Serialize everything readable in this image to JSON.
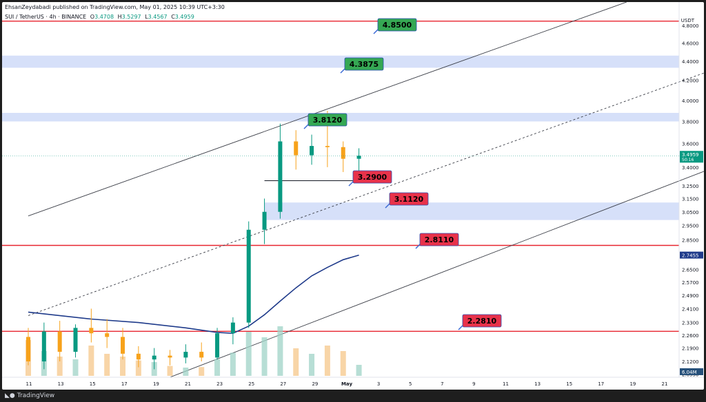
{
  "header": {
    "caption": "EhsanZeydabadi published on TradingView.com, May 01, 2025 10:39 UTC+3:30",
    "symbol": "SUI / TetherUS · 4h · BINANCE",
    "ohlc": [
      {
        "key": "O",
        "value": "3.4708"
      },
      {
        "key": "H",
        "value": "3.5297"
      },
      {
        "key": "L",
        "value": "3.4567"
      },
      {
        "key": "C",
        "value": "3.4959"
      }
    ],
    "currency": "USDT"
  },
  "footer": {
    "brand": "TradingView",
    "logo_icon": "tradingview-logo-icon"
  },
  "colors": {
    "bull": "#089981",
    "bear": "#f7a21b",
    "level": "#e8252f",
    "zone": "#d6e0f9",
    "channel": "#3a3d46",
    "ma": "#1e3a8a",
    "green_tag": "#35a853",
    "red_tag": "#e8324a"
  },
  "chart_data": {
    "type": "candlestick",
    "symbol": "SUI/USDT",
    "timeframe": "4h",
    "y_axis": {
      "ticks": [
        "4.8000",
        "4.6000",
        "4.4000",
        "4.2000",
        "4.0000",
        "3.8000",
        "3.6000",
        "3.4000",
        "3.2500",
        "3.1500",
        "3.0500",
        "2.9500",
        "2.8500",
        "2.7500",
        "2.6500",
        "2.5700",
        "2.4900",
        "2.4100",
        "2.3300",
        "2.2600",
        "2.1900",
        "2.1200",
        "2.0550"
      ],
      "scale": "log",
      "range": [
        2.04,
        5.08
      ],
      "current_price": "3.4959",
      "countdown": "50:16",
      "ma_value": "2.7455",
      "volume_value": "6.04M"
    },
    "x_axis": {
      "ticks": [
        "11",
        "13",
        "15",
        "17",
        "19",
        "21",
        "23",
        "25",
        "27",
        "29",
        "May",
        "3",
        "5",
        "7",
        "9",
        "11",
        "13",
        "15",
        "17",
        "19",
        "21"
      ],
      "range": [
        "2025-04-09",
        "2025-05-22"
      ]
    },
    "levels": [
      {
        "value": 4.85,
        "label": "4.8500",
        "kind": "resistance-line",
        "tag": "green",
        "tag_date": "2025-04-28"
      },
      {
        "value": 4.3875,
        "label": "4.3875",
        "kind": "zone",
        "zone": [
          4.33,
          4.46
        ],
        "tag": "green",
        "tag_date": "2025-04-28"
      },
      {
        "value": 3.812,
        "label": "3.8120",
        "kind": "zone",
        "zone": [
          3.8,
          3.88
        ],
        "tag": "green",
        "tag_date": "2025-04-27"
      },
      {
        "value": 3.29,
        "label": "3.2900",
        "kind": "support-segment",
        "from": "2025-04-24",
        "to": "2025-04-30",
        "tag": "red",
        "tag_date": "2025-04-30"
      },
      {
        "value": 3.112,
        "label": "3.1120",
        "kind": "zone",
        "zone": [
          2.99,
          3.12
        ],
        "zone_from": "2025-04-24",
        "tag": "red",
        "tag_date": "2025-05-03"
      },
      {
        "value": 2.811,
        "label": "2.8110",
        "kind": "support-line",
        "tag": "red",
        "tag_date": "2025-05-05"
      },
      {
        "value": 2.281,
        "label": "2.2810",
        "kind": "support-line",
        "tag": "red",
        "tag_date": "2025-05-09"
      }
    ],
    "channel": [
      {
        "name": "upper",
        "style": "solid",
        "points": [
          [
            "2025-04-09",
            3.02
          ],
          [
            "2025-05-17",
            5.08
          ]
        ]
      },
      {
        "name": "middle",
        "style": "dashed",
        "points": [
          [
            "2025-04-09",
            2.37
          ],
          [
            "2025-05-22",
            4.28
          ]
        ]
      },
      {
        "name": "lower",
        "style": "solid",
        "points": [
          [
            "2025-04-18",
            2.04
          ],
          [
            "2025-05-22",
            3.37
          ]
        ]
      }
    ],
    "moving_average": [
      [
        "2025-04-09",
        2.39
      ],
      [
        "2025-04-13",
        2.35
      ],
      [
        "2025-04-16",
        2.33
      ],
      [
        "2025-04-19",
        2.3
      ],
      [
        "2025-04-21",
        2.275
      ],
      [
        "2025-04-22",
        2.27
      ],
      [
        "2025-04-23",
        2.31
      ],
      [
        "2025-04-24",
        2.375
      ],
      [
        "2025-04-25",
        2.455
      ],
      [
        "2025-04-26",
        2.535
      ],
      [
        "2025-04-27",
        2.61
      ],
      [
        "2025-04-28",
        2.665
      ],
      [
        "2025-04-29",
        2.715
      ],
      [
        "2025-04-30",
        2.7455
      ]
    ],
    "candles": [
      [
        "2025-04-09",
        2.25,
        2.3,
        2.1,
        2.12
      ],
      [
        "2025-04-10",
        2.12,
        2.33,
        2.08,
        2.28
      ],
      [
        "2025-04-11",
        2.28,
        2.34,
        2.12,
        2.17
      ],
      [
        "2025-04-12",
        2.17,
        2.32,
        2.14,
        2.3
      ],
      [
        "2025-04-13",
        2.3,
        2.41,
        2.22,
        2.27
      ],
      [
        "2025-04-14",
        2.27,
        2.35,
        2.19,
        2.25
      ],
      [
        "2025-04-15",
        2.25,
        2.3,
        2.13,
        2.16
      ],
      [
        "2025-04-16",
        2.16,
        2.2,
        2.09,
        2.13
      ],
      [
        "2025-04-17",
        2.13,
        2.19,
        2.08,
        2.15
      ],
      [
        "2025-04-18",
        2.15,
        2.18,
        2.1,
        2.14
      ],
      [
        "2025-04-19",
        2.14,
        2.21,
        2.11,
        2.17
      ],
      [
        "2025-04-20",
        2.17,
        2.22,
        2.12,
        2.14
      ],
      [
        "2025-04-21",
        2.14,
        2.3,
        2.13,
        2.27
      ],
      [
        "2025-04-22",
        2.27,
        2.36,
        2.21,
        2.33
      ],
      [
        "2025-04-23",
        2.33,
        2.98,
        2.3,
        2.92
      ],
      [
        "2025-04-24",
        2.92,
        3.15,
        2.82,
        3.05
      ],
      [
        "2025-04-25",
        3.05,
        3.78,
        3.0,
        3.62
      ],
      [
        "2025-04-26",
        3.62,
        3.72,
        3.38,
        3.5
      ],
      [
        "2025-04-27",
        3.5,
        3.68,
        3.42,
        3.58
      ],
      [
        "2025-04-28",
        3.58,
        3.9,
        3.4,
        3.57
      ],
      [
        "2025-04-29",
        3.57,
        3.62,
        3.36,
        3.47
      ],
      [
        "2025-04-30",
        3.47,
        3.56,
        3.29,
        3.4959
      ]
    ],
    "volume": [
      [
        "2025-04-09",
        0.65
      ],
      [
        "2025-04-10",
        0.45
      ],
      [
        "2025-04-11",
        0.35
      ],
      [
        "2025-04-12",
        0.3
      ],
      [
        "2025-04-13",
        0.55
      ],
      [
        "2025-04-14",
        0.4
      ],
      [
        "2025-04-15",
        0.35
      ],
      [
        "2025-04-16",
        0.28
      ],
      [
        "2025-04-17",
        0.25
      ],
      [
        "2025-04-18",
        0.18
      ],
      [
        "2025-04-19",
        0.15
      ],
      [
        "2025-04-20",
        0.16
      ],
      [
        "2025-04-21",
        0.3
      ],
      [
        "2025-04-22",
        0.42
      ],
      [
        "2025-04-23",
        0.8
      ],
      [
        "2025-04-24",
        0.7
      ],
      [
        "2025-04-25",
        0.9
      ],
      [
        "2025-04-26",
        0.5
      ],
      [
        "2025-04-27",
        0.4
      ],
      [
        "2025-04-28",
        0.55
      ],
      [
        "2025-04-29",
        0.45
      ],
      [
        "2025-04-30",
        0.2
      ]
    ]
  }
}
